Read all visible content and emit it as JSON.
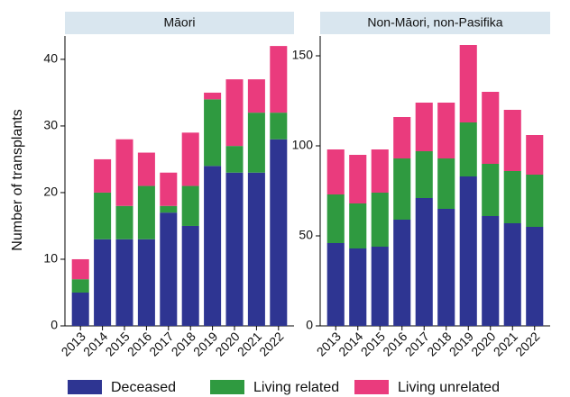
{
  "chart_data": [
    {
      "type": "stacked-bar",
      "title": "Māori",
      "y_label": "Number of transplants",
      "categories": [
        "2013",
        "2014",
        "2015",
        "2016",
        "2017",
        "2018",
        "2019",
        "2020",
        "2021",
        "2022"
      ],
      "series": [
        {
          "name": "Deceased",
          "color": "#2e3592",
          "values": [
            5,
            13,
            13,
            13,
            17,
            15,
            24,
            23,
            23,
            28
          ]
        },
        {
          "name": "Living related",
          "color": "#2f9a40",
          "values": [
            2,
            7,
            5,
            8,
            1,
            6,
            10,
            4,
            9,
            4
          ]
        },
        {
          "name": "Living unrelated",
          "color": "#ea3b7d",
          "values": [
            3,
            5,
            10,
            5,
            5,
            8,
            1,
            10,
            5,
            10
          ]
        }
      ],
      "ylim": [
        0,
        43.5
      ],
      "yticks": [
        0,
        10,
        20,
        30,
        40
      ]
    },
    {
      "type": "stacked-bar",
      "title": "Non-Māori, non-Pasifika",
      "categories": [
        "2013",
        "2014",
        "2015",
        "2016",
        "2017",
        "2018",
        "2019",
        "2020",
        "2021",
        "2022"
      ],
      "series": [
        {
          "color": "#2e3592",
          "values": [
            46,
            43,
            44,
            59,
            71,
            65,
            83,
            61,
            57,
            55
          ]
        },
        {
          "color": "#2f9a40",
          "values": [
            27,
            25,
            30,
            34,
            26,
            28,
            30,
            29,
            29,
            29
          ]
        },
        {
          "color": "#ea3b7d",
          "values": [
            25,
            27,
            24,
            23,
            27,
            31,
            43,
            40,
            34,
            22
          ]
        }
      ],
      "ylim": [
        0,
        161
      ],
      "yticks": [
        0,
        50,
        100,
        150
      ]
    }
  ]
}
